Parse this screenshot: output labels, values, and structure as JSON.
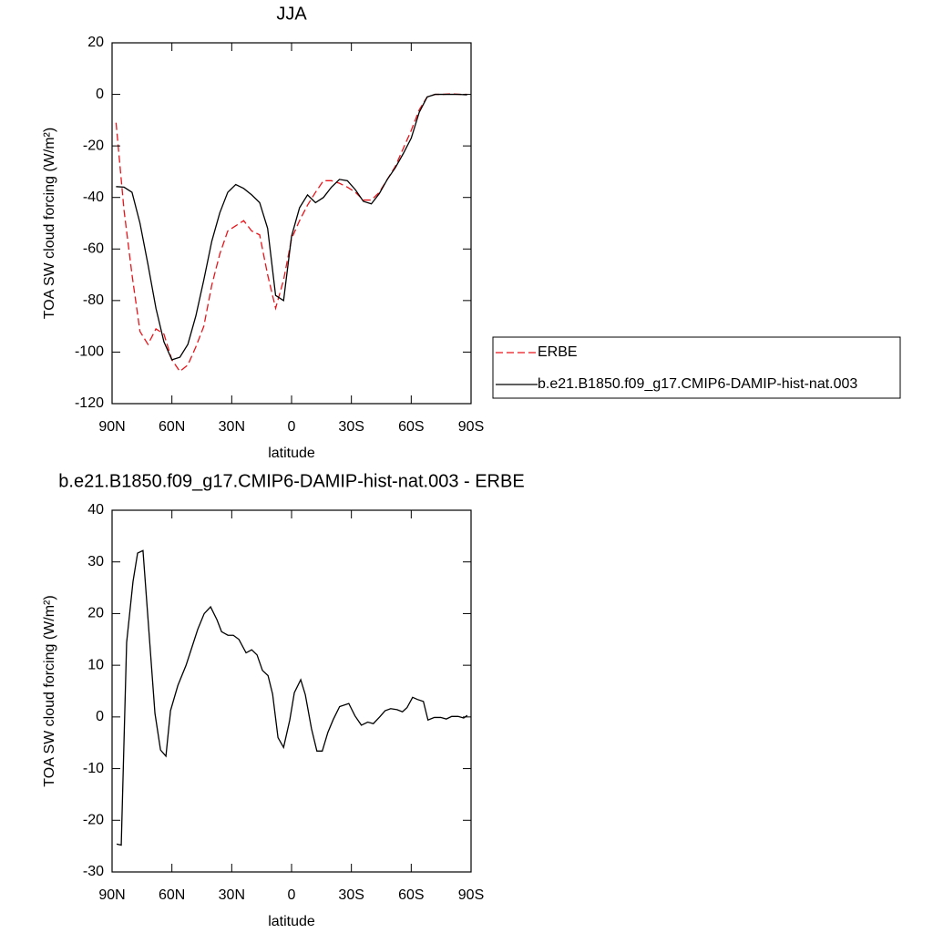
{
  "chart_data": [
    {
      "type": "line",
      "title": "JJA",
      "x_label": "latitude",
      "y_label": "TOA SW cloud forcing (W/m²)",
      "x": [
        88,
        84,
        80,
        76,
        72,
        68,
        64,
        60,
        56,
        52,
        48,
        44,
        40,
        36,
        32,
        28,
        24,
        20,
        16,
        12,
        8,
        4,
        0,
        -4,
        -8,
        -12,
        -16,
        -20,
        -24,
        -28,
        -32,
        -36,
        -40,
        -44,
        -48,
        -52,
        -56,
        -60,
        -64,
        -68,
        -72,
        -76,
        -80,
        -84,
        -88
      ],
      "series": [
        {
          "name": "ERBE",
          "color": "#e8141a",
          "style": "dashed",
          "values": [
            -11,
            -45,
            -70,
            -92,
            -97,
            -91,
            -93,
            -103,
            -107.5,
            -105,
            -98,
            -90,
            -74,
            -62,
            -53,
            -51,
            -49,
            -53,
            -54.5,
            -70,
            -83,
            -72,
            -56,
            -49,
            -43,
            -38,
            -33.5,
            -33.5,
            -34.5,
            -36,
            -38,
            -41,
            -41,
            -38,
            -33,
            -28,
            -21,
            -14,
            -6,
            -1,
            0,
            0,
            0.2,
            0,
            0
          ]
        },
        {
          "name": "b.e21.B1850.f09_g17.CMIP6-DAMIP-hist-nat.003",
          "color": "#000000",
          "style": "solid",
          "values": [
            -35.8,
            -36,
            -38,
            -50,
            -66,
            -83,
            -96,
            -103,
            -102,
            -97,
            -86,
            -72,
            -57,
            -46,
            -38,
            -35,
            -36.5,
            -39,
            -42,
            -52,
            -78,
            -80,
            -55,
            -44,
            -39,
            -42,
            -40,
            -36,
            -33,
            -33.5,
            -37,
            -41.5,
            -42.5,
            -38.5,
            -33,
            -28.5,
            -23,
            -17,
            -7,
            -1,
            0,
            0,
            0,
            0,
            -0.2
          ]
        }
      ],
      "xlim": [
        90,
        -90
      ],
      "xticks": [
        {
          "value": 90,
          "label": "90N"
        },
        {
          "value": 60,
          "label": "60N"
        },
        {
          "value": 30,
          "label": "30N"
        },
        0,
        {
          "value": -30,
          "label": "30S"
        },
        {
          "value": -60,
          "label": "60S"
        },
        {
          "value": -90,
          "label": "90S"
        }
      ],
      "ylim": [
        -120,
        20
      ],
      "yticks": [
        -120,
        -100,
        -80,
        -60,
        -40,
        -20,
        0,
        20
      ],
      "legend": "right"
    },
    {
      "type": "line",
      "title": "b.e21.B1850.f09_g17.CMIP6-DAMIP-hist-nat.003 - ERBE",
      "x_label": "latitude",
      "y_label": "TOA SW cloud forcing (W/m²)",
      "x": [
        87.7,
        85.4,
        82.7,
        79.5,
        77.2,
        74.5,
        68.5,
        65.7,
        63,
        60.7,
        57,
        52.9,
        50.2,
        47,
        43.8,
        40.6,
        37.4,
        35.1,
        31.9,
        29.2,
        26.4,
        22.8,
        20,
        17.3,
        14.6,
        11.8,
        9.5,
        6.8,
        4,
        0.9,
        -1.4,
        -4.6,
        -6.9,
        -10,
        -12.7,
        -15.4,
        -18.2,
        -20.9,
        -24.1,
        -28.7,
        -31.8,
        -35,
        -38.2,
        -41,
        -44.2,
        -46.9,
        -49.7,
        -52.9,
        -55.6,
        -57.9,
        -60.7,
        -63,
        -66.1,
        -68.4,
        -71.6,
        -74.8,
        -77.6,
        -80.3,
        -83.5,
        -86.3,
        -88.1
      ],
      "series": [
        {
          "color": "#000000",
          "style": "solid",
          "values": [
            -24.6,
            -24.8,
            14.4,
            26.2,
            31.7,
            32.2,
            0.7,
            -6.4,
            -7.6,
            1.2,
            6.1,
            10,
            13.2,
            17,
            20,
            21.3,
            18.8,
            16.5,
            15.8,
            15.8,
            15,
            12.4,
            13,
            12,
            9,
            8,
            4.4,
            -4,
            -5.9,
            -0.6,
            4.7,
            7.2,
            4.3,
            -2.3,
            -6.6,
            -6.6,
            -3,
            -0.5,
            2,
            2.6,
            0.2,
            -1.6,
            -1,
            -1.3,
            0,
            1.2,
            1.6,
            1.4,
            1,
            1.8,
            3.8,
            3.4,
            3,
            -0.6,
            -0.1,
            -0.1,
            -0.4,
            0.1,
            0.1,
            -0.2,
            0.3
          ]
        }
      ],
      "xlim": [
        90,
        -90
      ],
      "xticks": [
        {
          "value": 90,
          "label": "90N"
        },
        {
          "value": 60,
          "label": "60N"
        },
        {
          "value": 30,
          "label": "30N"
        },
        0,
        {
          "value": -30,
          "label": "30S"
        },
        {
          "value": -60,
          "label": "60S"
        },
        {
          "value": -90,
          "label": "90S"
        }
      ],
      "ylim": [
        -30,
        40
      ],
      "yticks": [
        -30,
        -20,
        -10,
        0,
        10,
        20,
        30,
        40
      ]
    }
  ]
}
